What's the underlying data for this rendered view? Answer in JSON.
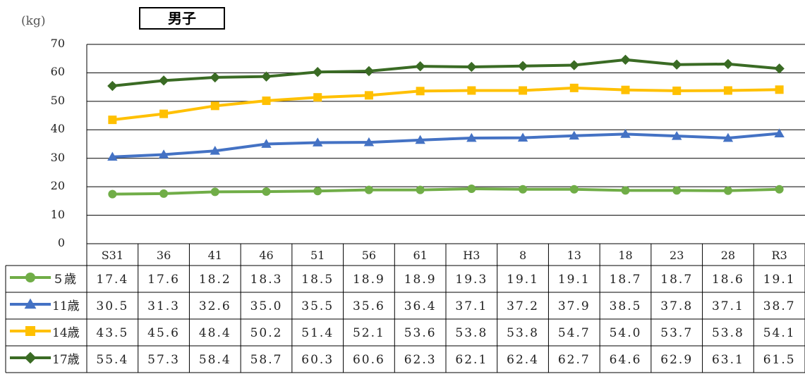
{
  "unit_label": "(kg)",
  "sex_label": "男子",
  "chart_data": {
    "type": "line",
    "title": "男子",
    "ylabel": "(kg)",
    "ylim": [
      0,
      70
    ],
    "yticks": [
      0,
      10,
      20,
      30,
      40,
      50,
      60,
      70
    ],
    "categories": [
      "S31",
      "36",
      "41",
      "46",
      "51",
      "56",
      "61",
      "H3",
      "8",
      "13",
      "18",
      "23",
      "28",
      "R3"
    ],
    "grid": true,
    "legend": "data-table-left",
    "series": [
      {
        "name": "５歳",
        "color": "#70ad47",
        "marker": "circle",
        "values": [
          17.4,
          17.6,
          18.2,
          18.3,
          18.5,
          18.9,
          18.9,
          19.3,
          19.1,
          19.1,
          18.7,
          18.7,
          18.6,
          19.1
        ],
        "labels": [
          "17.4",
          "17.6",
          "18.2",
          "18.3",
          "18.5",
          "18.9",
          "18.9",
          "19.3",
          "19.1",
          "19.1",
          "18.7",
          "18.7",
          "18.6",
          "19.1"
        ]
      },
      {
        "name": "11歳",
        "color": "#4472c4",
        "marker": "triangle",
        "values": [
          30.5,
          31.3,
          32.6,
          35.0,
          35.5,
          35.6,
          36.4,
          37.1,
          37.2,
          37.9,
          38.5,
          37.8,
          37.1,
          38.7
        ],
        "labels": [
          "30.5",
          "31.3",
          "32.6",
          "35.0",
          "35.5",
          "35.6",
          "36.4",
          "37.1",
          "37.2",
          "37.9",
          "38.5",
          "37.8",
          "37.1",
          "38.7"
        ]
      },
      {
        "name": "14歳",
        "color": "#ffc000",
        "marker": "square",
        "values": [
          43.5,
          45.6,
          48.4,
          50.2,
          51.4,
          52.1,
          53.6,
          53.8,
          53.8,
          54.7,
          54.0,
          53.7,
          53.8,
          54.1
        ],
        "labels": [
          "43.5",
          "45.6",
          "48.4",
          "50.2",
          "51.4",
          "52.1",
          "53.6",
          "53.8",
          "53.8",
          "54.7",
          "54.0",
          "53.7",
          "53.8",
          "54.1"
        ]
      },
      {
        "name": "17歳",
        "color": "#3a6b24",
        "marker": "diamond",
        "values": [
          55.4,
          57.3,
          58.4,
          58.7,
          60.3,
          60.6,
          62.3,
          62.1,
          62.4,
          62.7,
          64.6,
          62.9,
          63.1,
          61.5
        ],
        "labels": [
          "55.4",
          "57.3",
          "58.4",
          "58.7",
          "60.3",
          "60.6",
          "62.3",
          "62.1",
          "62.4",
          "62.7",
          "64.6",
          "62.9",
          "63.1",
          "61.5"
        ]
      }
    ]
  }
}
